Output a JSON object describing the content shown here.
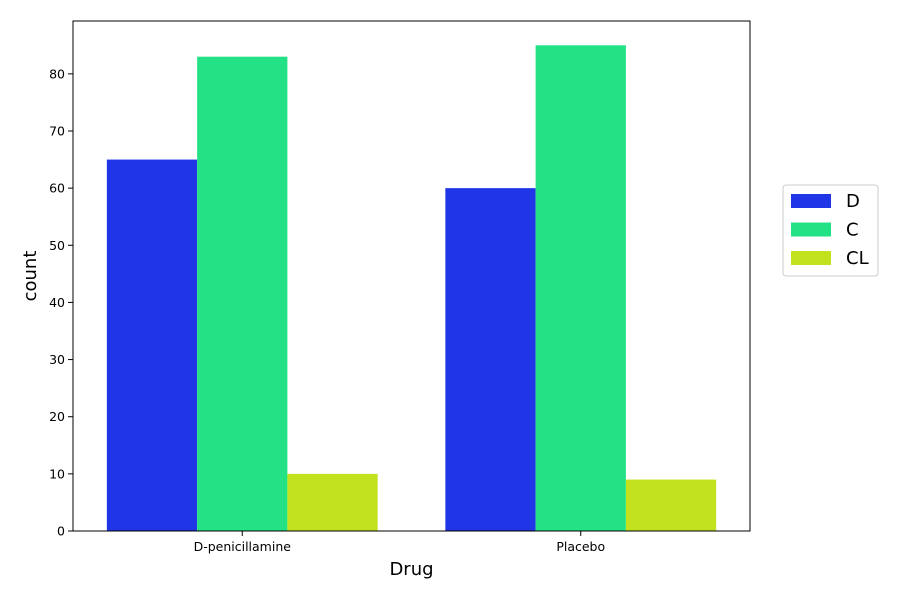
{
  "chart_data": {
    "type": "bar",
    "xlabel": "Drug",
    "ylabel": "count",
    "categories": [
      "D-penicillamine",
      "Placebo"
    ],
    "series": [
      {
        "name": "D",
        "color": "#1f35e6",
        "values": [
          65,
          60
        ]
      },
      {
        "name": "C",
        "color": "#22e285",
        "values": [
          83,
          85
        ]
      },
      {
        "name": "CL",
        "color": "#c2e21e",
        "values": [
          10,
          9
        ]
      }
    ],
    "ylim": [
      0,
      89.25
    ],
    "yticks": [
      0,
      10,
      20,
      30,
      40,
      50,
      60,
      70,
      80
    ],
    "grid": false,
    "legend_position": "right"
  }
}
